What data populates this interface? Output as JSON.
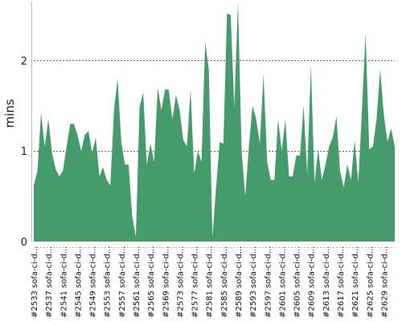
{
  "chart_data": {
    "type": "area",
    "title": "",
    "xlabel": "",
    "ylabel": "mins",
    "ylim": [
      0,
      2.65
    ],
    "y_ticks": [
      0,
      1,
      2
    ],
    "grid": "horizontal dashed",
    "legend": "none",
    "color": "#459b6b",
    "x_tick_labels": [
      "#2533 sofa-ci-d...",
      "#2537 sofa-ci-d...",
      "#2541 sofa-ci-d...",
      "#2545 sofa-ci-d...",
      "#2549 sofa-ci-d...",
      "#2553 sofa-ci-d...",
      "#2557 sofa-ci-d...",
      "#2561 sofa-ci-d...",
      "#2565 sofa-ci-d...",
      "#2569 sofa-ci-d...",
      "#2573 sofa-ci-d...",
      "#2577 sofa-ci-d...",
      "#2581 sofa-ci-d...",
      "#2585 sofa-ci-d...",
      "#2589 sofa-ci-d...",
      "#2593 sofa-ci-d...",
      "#2597 sofa-ci-d...",
      "#2601 sofa-ci-d...",
      "#2605 sofa-ci-d...",
      "#2609 sofa-ci-d...",
      "#2613 sofa-ci-d...",
      "#2617 sofa-ci-d...",
      "#2621 sofa-ci-d...",
      "#2625 sofa-ci-d...",
      "#2629 sofa-ci-d..."
    ],
    "x_start": 2533,
    "x_end": 2632,
    "values": [
      0.62,
      0.78,
      1.42,
      1.05,
      1.35,
      0.98,
      0.8,
      0.72,
      0.78,
      1.05,
      1.3,
      1.3,
      1.18,
      1.0,
      1.18,
      1.22,
      0.98,
      1.15,
      0.72,
      0.82,
      0.68,
      0.62,
      1.45,
      1.8,
      1.1,
      0.85,
      0.85,
      0.28,
      0.05,
      1.48,
      1.65,
      0.85,
      1.08,
      0.88,
      1.7,
      1.45,
      1.68,
      1.68,
      1.35,
      1.62,
      1.45,
      1.12,
      1.05,
      1.68,
      0.75,
      1.0,
      0.88,
      2.2,
      1.9,
      0.05,
      0.6,
      1.1,
      1.08,
      2.52,
      2.5,
      1.48,
      2.65,
      1.0,
      0.5,
      1.05,
      1.5,
      1.35,
      1.08,
      1.85,
      0.88,
      0.68,
      0.68,
      1.35,
      1.0,
      1.35,
      0.72,
      0.72,
      0.95,
      0.95,
      1.5,
      0.75,
      1.95,
      0.65,
      1.02,
      0.68,
      0.85,
      1.05,
      1.15,
      1.38,
      0.78,
      0.6,
      0.85,
      0.68,
      1.12,
      0.65,
      1.45,
      2.3,
      1.02,
      1.05,
      1.35,
      1.9,
      1.4,
      1.1,
      1.25,
      1.05
    ]
  }
}
